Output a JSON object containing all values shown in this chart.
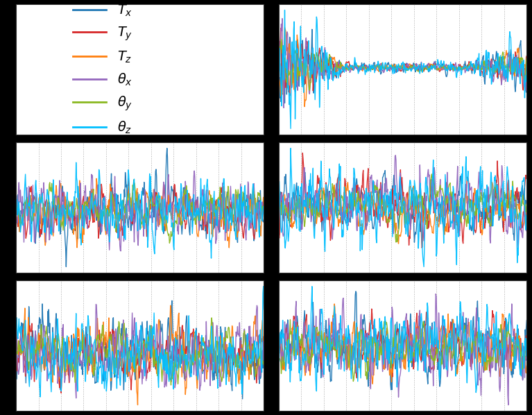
{
  "colors": [
    "#1f77b4",
    "#d62728",
    "#ff7f0e",
    "#9467bd",
    "#8ab820",
    "#00bfff"
  ],
  "labels": [
    "$T_x$",
    "$T_y$",
    "$T_z$",
    "$\\theta_x$",
    "$\\theta_y$",
    "$\\theta_z$"
  ],
  "n_points": 500,
  "fig_bg": "#000000",
  "plot_bg": "#ffffff",
  "grid_color": "#aaaaaa",
  "figsize": [
    7.67,
    5.98
  ],
  "dpi": 100,
  "lw": 1.0
}
